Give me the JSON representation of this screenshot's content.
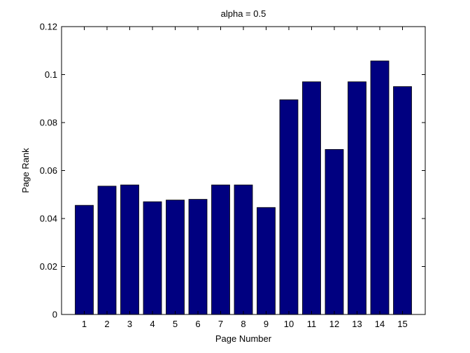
{
  "chart_data": {
    "type": "bar",
    "title": "alpha = 0.5",
    "xlabel": "Page Number",
    "ylabel": "Page Rank",
    "categories": [
      "1",
      "2",
      "3",
      "4",
      "5",
      "6",
      "7",
      "8",
      "9",
      "10",
      "11",
      "12",
      "13",
      "14",
      "15"
    ],
    "values": [
      0.0455,
      0.0535,
      0.054,
      0.047,
      0.0477,
      0.048,
      0.054,
      0.054,
      0.0446,
      0.0895,
      0.097,
      0.0688,
      0.097,
      0.1057,
      0.095
    ],
    "ylim": [
      0,
      0.12
    ],
    "yticks": [
      "0",
      "0.02",
      "0.04",
      "0.06",
      "0.08",
      "0.1",
      "0.12"
    ],
    "xlim": [
      0,
      16
    ],
    "grid": false,
    "bar_color": "#000080",
    "axis_color": "#000000"
  }
}
